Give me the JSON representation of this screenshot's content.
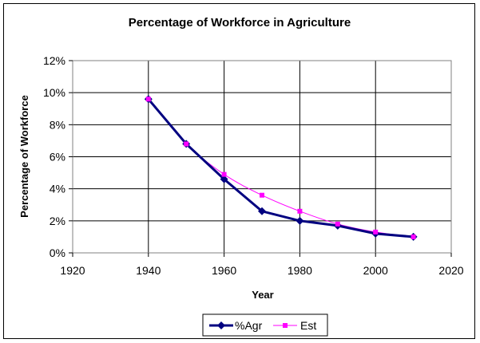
{
  "chart_data": {
    "type": "line",
    "title": "Percentage of Workforce in Agriculture",
    "xlabel": "Year",
    "ylabel": "Percentage of Workforce",
    "xlim": [
      1920,
      2020
    ],
    "ylim": [
      0,
      0.12
    ],
    "x_ticks": [
      "1920",
      "1940",
      "1960",
      "1980",
      "2000",
      "2020"
    ],
    "y_ticks": [
      "0%",
      "2%",
      "4%",
      "6%",
      "8%",
      "10%",
      "12%"
    ],
    "grid": "horizontal and vertical",
    "legend_position": "bottom",
    "series": [
      {
        "name": "%Agr",
        "color": "#000080",
        "marker": "diamond",
        "x": [
          1940,
          1950,
          1960,
          1970,
          1980,
          1990,
          2000,
          2010
        ],
        "y": [
          0.096,
          0.068,
          0.046,
          0.026,
          0.02,
          0.017,
          0.012,
          0.01
        ]
      },
      {
        "name": "Est",
        "color": "#ff00ff",
        "marker": "square",
        "x": [
          1940,
          1950,
          1960,
          1970,
          1980,
          1990,
          2000,
          2010
        ],
        "y": [
          0.096,
          0.068,
          0.049,
          0.036,
          0.026,
          0.018,
          0.013,
          0.01
        ]
      }
    ]
  }
}
